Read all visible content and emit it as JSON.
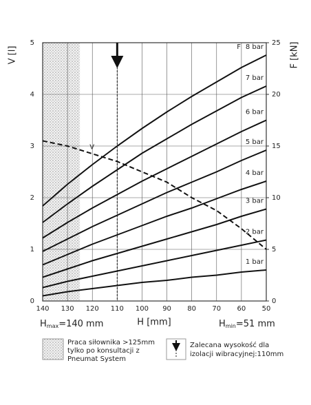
{
  "chart_data": {
    "type": "line",
    "x_label": "H [mm]",
    "y_label": "V [l]",
    "y2_label": "F [kN]",
    "x": [
      140,
      130,
      120,
      110,
      100,
      90,
      80,
      70,
      60,
      50
    ],
    "xlim": [
      140,
      50
    ],
    "xticks": [
      140,
      130,
      120,
      110,
      100,
      90,
      80,
      70,
      60,
      50
    ],
    "ylim": [
      0,
      5
    ],
    "yticks": [
      0,
      1,
      2,
      3,
      4,
      5
    ],
    "y2lim": [
      0,
      25
    ],
    "y2ticks": [
      0,
      5,
      10,
      15,
      20,
      25
    ],
    "grid": true,
    "force_annotation": "F",
    "shaded_xrange": [
      140,
      125
    ],
    "recommended_x": 110,
    "hmax_label": [
      "H",
      "max",
      "=140 mm"
    ],
    "hmin_label": [
      "H",
      "min",
      "=51 mm"
    ],
    "series": [
      {
        "name": "8 bar",
        "color": "#111",
        "axis": "y2",
        "values": [
          9.2,
          11.3,
          13.2,
          15.0,
          16.7,
          18.3,
          19.8,
          21.2,
          22.6,
          23.8
        ]
      },
      {
        "name": "7 bar",
        "color": "#111",
        "axis": "y2",
        "values": [
          7.6,
          9.4,
          11.1,
          12.7,
          14.3,
          15.7,
          17.1,
          18.4,
          19.7,
          20.8
        ]
      },
      {
        "name": "6 bar",
        "color": "#111",
        "axis": "y2",
        "values": [
          6.1,
          7.6,
          9.0,
          10.3,
          11.6,
          12.8,
          14.0,
          15.2,
          16.4,
          17.5
        ]
      },
      {
        "name": "5 bar",
        "color": "#111",
        "axis": "y2",
        "values": [
          4.8,
          6.0,
          7.2,
          8.3,
          9.4,
          10.5,
          11.5,
          12.5,
          13.6,
          14.6
        ]
      },
      {
        "name": "4 bar",
        "color": "#111",
        "axis": "y2",
        "values": [
          3.5,
          4.5,
          5.5,
          6.4,
          7.3,
          8.2,
          9.0,
          9.9,
          10.8,
          11.6
        ]
      },
      {
        "name": "3 bar",
        "color": "#111",
        "axis": "y2",
        "values": [
          2.3,
          3.1,
          3.9,
          4.6,
          5.3,
          6.0,
          6.7,
          7.4,
          8.2,
          8.9
        ]
      },
      {
        "name": "2 bar",
        "color": "#111",
        "axis": "y2",
        "values": [
          1.3,
          1.9,
          2.4,
          2.9,
          3.4,
          3.9,
          4.4,
          4.9,
          5.4,
          5.9
        ]
      },
      {
        "name": "1 bar",
        "color": "#111",
        "axis": "y2",
        "values": [
          0.5,
          0.9,
          1.2,
          1.5,
          1.8,
          2.0,
          2.3,
          2.5,
          2.8,
          3.0
        ]
      },
      {
        "name": "V",
        "color": "#111",
        "axis": "y",
        "dashed": true,
        "values": [
          3.1,
          3.0,
          2.85,
          2.7,
          2.5,
          2.3,
          2.0,
          1.75,
          1.4,
          1.0
        ]
      }
    ],
    "legend_shaded": [
      "Praca siłownika >125mm",
      "tylko po konsultacji z",
      "Pneumat System"
    ],
    "legend_arrow": [
      "Zalecana wysokość dla",
      "izolacji wibracyjnej:110mm"
    ]
  }
}
